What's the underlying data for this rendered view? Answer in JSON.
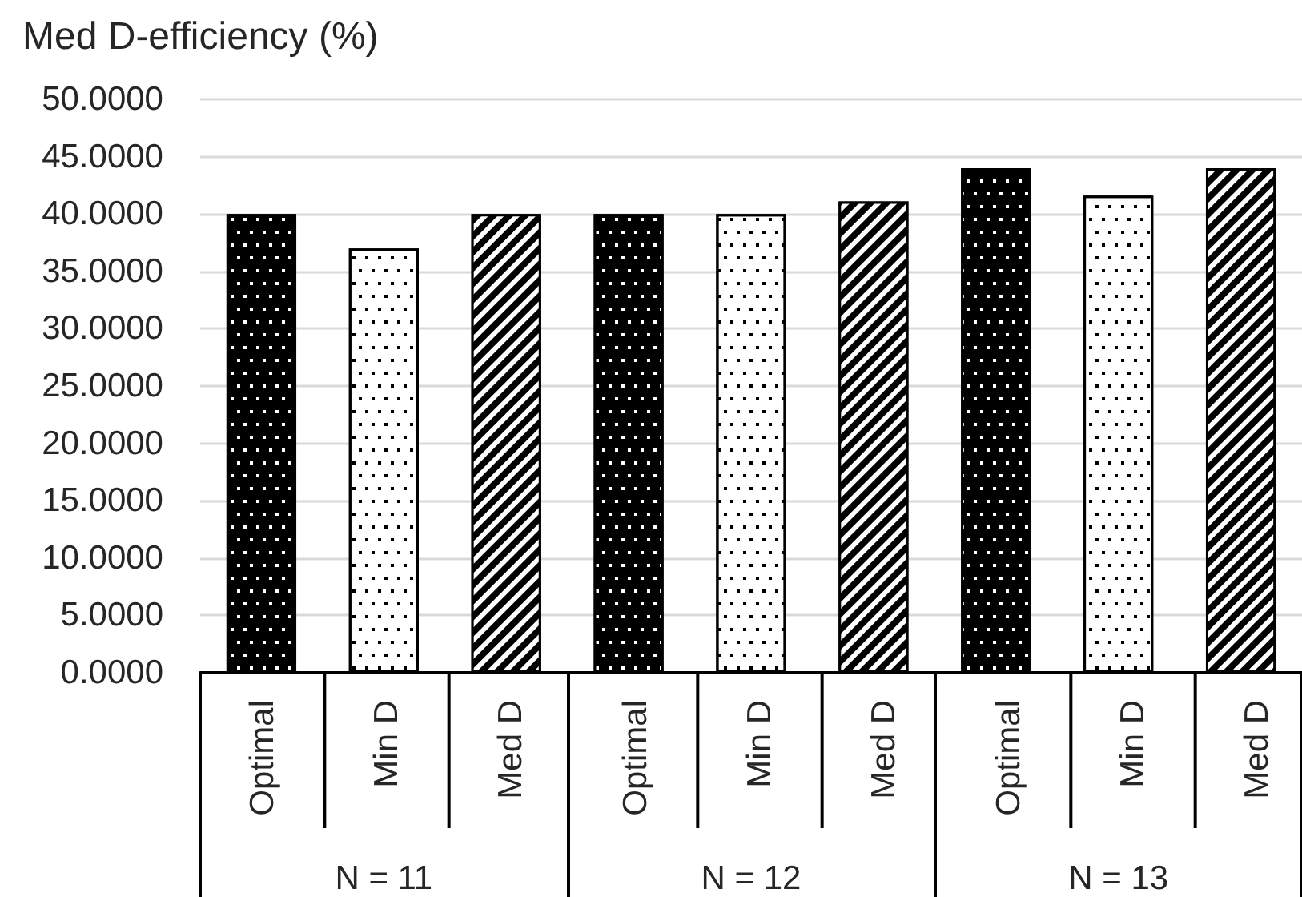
{
  "chart_data": {
    "type": "bar",
    "ylabel": "Med D-efficiency (%)",
    "categories": [
      "N = 11",
      "N = 12",
      "N = 13"
    ],
    "series": [
      {
        "name": "Optimal",
        "color": "#000000",
        "values": [
          40,
          40,
          44
        ]
      },
      {
        "name": "Min D",
        "color": "#ffffff",
        "values": [
          37,
          40,
          41.6
        ]
      },
      {
        "name": "Med D",
        "color": "#000000",
        "values": [
          40,
          41.1,
          44
        ]
      }
    ],
    "ylim": [
      0,
      50
    ],
    "yticks": [
      {
        "value": 0,
        "label": "0.0000"
      },
      {
        "value": 5,
        "label": "5.0000"
      },
      {
        "value": 10,
        "label": "10.0000"
      },
      {
        "value": 15,
        "label": "15.0000"
      },
      {
        "value": 20,
        "label": "20.0000"
      },
      {
        "value": 25,
        "label": "25.0000"
      },
      {
        "value": 30,
        "label": "30.0000"
      },
      {
        "value": 35,
        "label": "35.0000"
      },
      {
        "value": 40,
        "label": "40.0000"
      },
      {
        "value": 45,
        "label": "45.0000"
      },
      {
        "value": 50,
        "label": "50.0000"
      }
    ],
    "grid": "y"
  }
}
